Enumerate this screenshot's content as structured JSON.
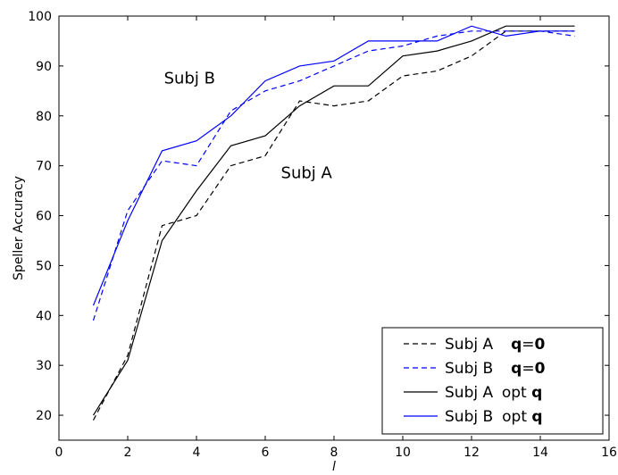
{
  "chart_data": {
    "type": "line",
    "xlabel": "l",
    "ylabel": "Speller Accuracy",
    "xlim": [
      0,
      16
    ],
    "ylim": [
      15,
      100
    ],
    "xticks": [
      0,
      2,
      4,
      6,
      8,
      10,
      12,
      14,
      16
    ],
    "yticks": [
      20,
      30,
      40,
      50,
      60,
      70,
      80,
      90,
      100
    ],
    "x": [
      1,
      2,
      3,
      4,
      5,
      6,
      7,
      8,
      9,
      10,
      11,
      12,
      13,
      14,
      15
    ],
    "series": [
      {
        "name": "Subj A",
        "legend_rest": "q=0",
        "color": "#000000",
        "dashed": true,
        "values": [
          19,
          32,
          58,
          60,
          70,
          72,
          83,
          82,
          83,
          88,
          89,
          92,
          97,
          97,
          97
        ]
      },
      {
        "name": "Subj B",
        "legend_rest": "q=0",
        "color": "#0000ff",
        "dashed": true,
        "values": [
          39,
          61,
          71,
          70,
          81,
          85,
          87,
          90,
          93,
          94,
          96,
          97,
          97,
          97,
          96
        ]
      },
      {
        "name": "Subj A",
        "legend_rest": "opt q",
        "color": "#000000",
        "dashed": false,
        "values": [
          20,
          31,
          55,
          65,
          74,
          76,
          82,
          86,
          86,
          92,
          93,
          95,
          98,
          98,
          98
        ]
      },
      {
        "name": "Subj B",
        "legend_rest": "opt q",
        "color": "#0000ff",
        "dashed": false,
        "values": [
          42,
          59,
          73,
          75,
          80,
          87,
          90,
          91,
          95,
          95,
          95,
          98,
          96,
          97,
          97
        ]
      }
    ],
    "annotations": [
      {
        "text": "Subj B",
        "x": 3.8,
        "y": 86.5
      },
      {
        "text": "Subj A",
        "x": 7.2,
        "y": 67.5
      }
    ],
    "legend_position": "lower-right",
    "grid": false
  }
}
